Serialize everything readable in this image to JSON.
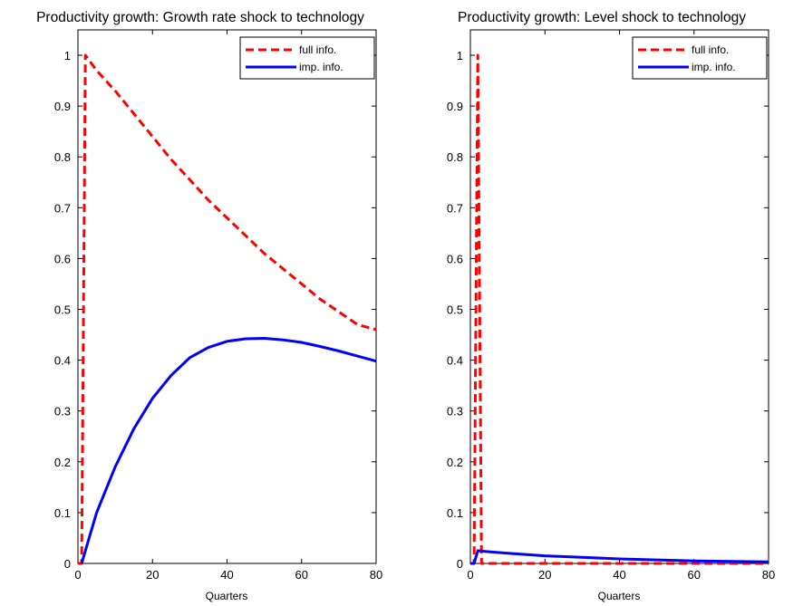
{
  "chart_data": [
    {
      "type": "line",
      "title": "Productivity growth: Growth rate shock to technology",
      "xlabel": "Quarters",
      "ylabel": "",
      "xlim": [
        0,
        80
      ],
      "ylim": [
        0,
        1.05
      ],
      "xticks": [
        "0",
        "20",
        "40",
        "60",
        "80"
      ],
      "yticks": [
        "0",
        "0.1",
        "0.2",
        "0.3",
        "0.4",
        "0.5",
        "0.6",
        "0.7",
        "0.8",
        "0.9",
        "1"
      ],
      "grid": false,
      "legend_position": "top-right",
      "series": [
        {
          "name": "full info.",
          "style": "dashed",
          "color": "#ff0000",
          "x": [
            0,
            1,
            2,
            5,
            10,
            15,
            20,
            25,
            30,
            35,
            40,
            45,
            50,
            55,
            60,
            65,
            70,
            75,
            80
          ],
          "y": [
            0,
            0,
            1.0,
            0.97,
            0.93,
            0.885,
            0.84,
            0.795,
            0.755,
            0.715,
            0.68,
            0.645,
            0.61,
            0.58,
            0.55,
            0.52,
            0.495,
            0.47,
            0.46
          ]
        },
        {
          "name": "imp. info.",
          "style": "solid",
          "color": "#0000ff",
          "x": [
            1,
            3,
            5,
            10,
            15,
            20,
            25,
            30,
            35,
            40,
            45,
            50,
            55,
            60,
            65,
            70,
            75,
            80
          ],
          "y": [
            0,
            0.05,
            0.1,
            0.19,
            0.265,
            0.325,
            0.37,
            0.405,
            0.425,
            0.437,
            0.442,
            0.443,
            0.44,
            0.435,
            0.427,
            0.418,
            0.408,
            0.398
          ]
        }
      ]
    },
    {
      "type": "line",
      "title": "Productivity growth: Level shock to technology",
      "xlabel": "Quarters",
      "ylabel": "",
      "xlim": [
        0,
        80
      ],
      "ylim": [
        0,
        1.05
      ],
      "xticks": [
        "0",
        "20",
        "40",
        "60",
        "80"
      ],
      "yticks": [
        "0",
        "0.1",
        "0.2",
        "0.3",
        "0.4",
        "0.5",
        "0.6",
        "0.7",
        "0.8",
        "0.9",
        "1"
      ],
      "grid": false,
      "legend_position": "top-right",
      "series": [
        {
          "name": "full info.",
          "style": "dashed",
          "color": "#ff0000",
          "x": [
            0,
            1,
            2,
            3,
            5,
            10,
            20,
            40,
            60,
            80
          ],
          "y": [
            0,
            0,
            1.0,
            0,
            0,
            0,
            0,
            0,
            0,
            0
          ]
        },
        {
          "name": "imp. info.",
          "style": "solid",
          "color": "#0000ff",
          "x": [
            0,
            1,
            2,
            5,
            10,
            20,
            30,
            40,
            50,
            60,
            70,
            80
          ],
          "y": [
            0,
            0,
            0.025,
            0.023,
            0.02,
            0.015,
            0.012,
            0.009,
            0.007,
            0.005,
            0.004,
            0.003
          ]
        }
      ]
    }
  ]
}
